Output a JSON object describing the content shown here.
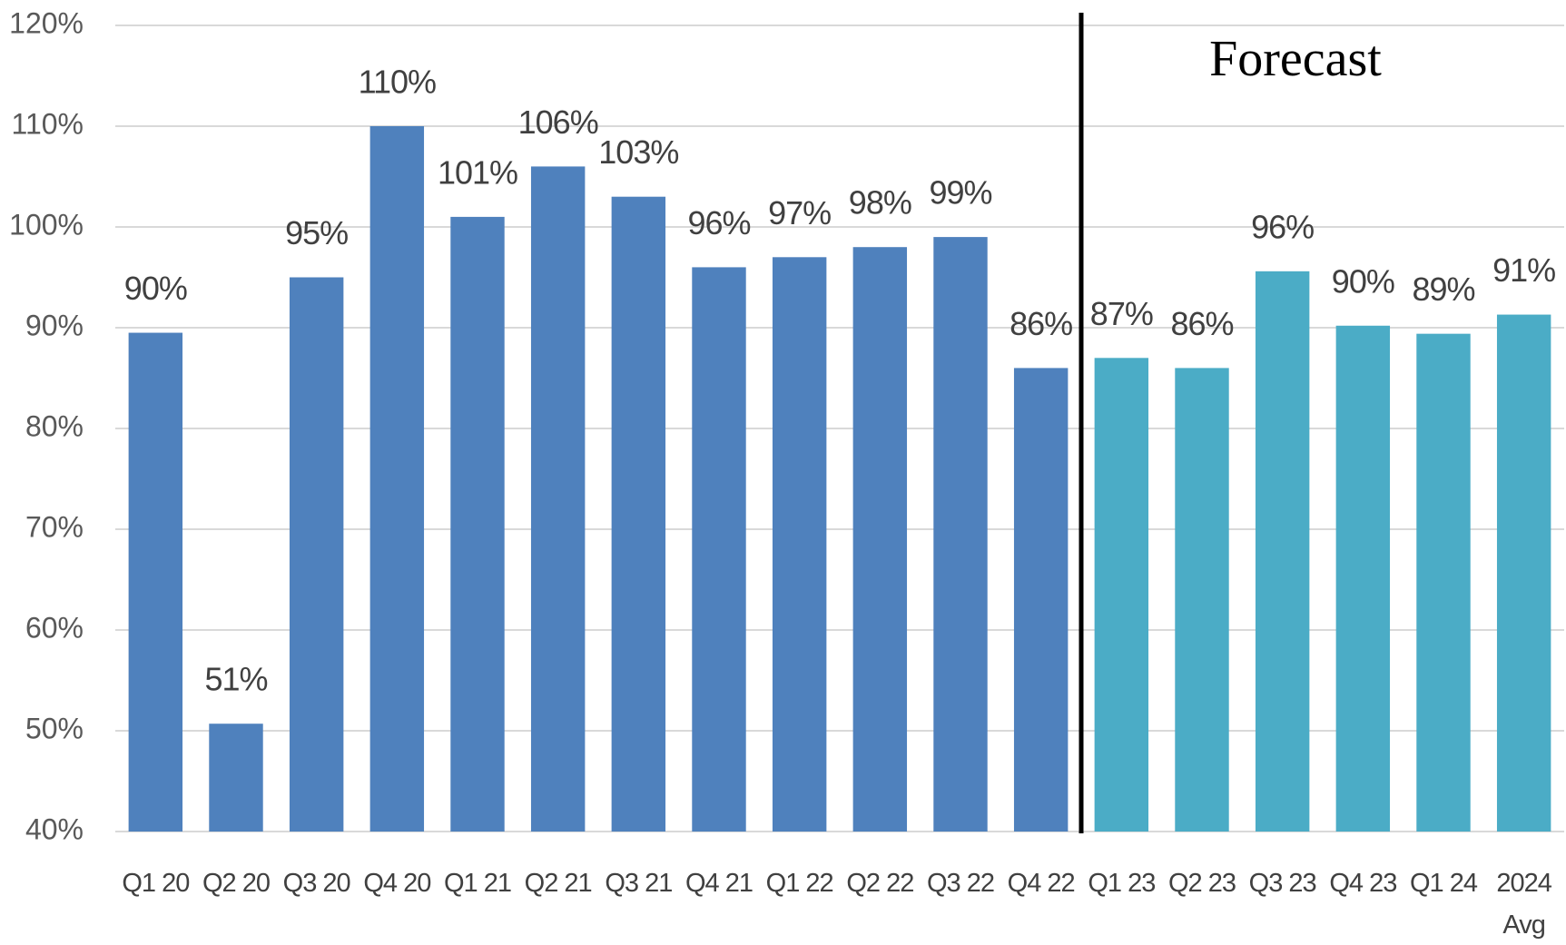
{
  "chart_data": {
    "type": "bar",
    "categories": [
      "Q1 20",
      "Q2 20",
      "Q3 20",
      "Q4 20",
      "Q1 21",
      "Q2 21",
      "Q3 21",
      "Q4 21",
      "Q1 22",
      "Q2 22",
      "Q3 22",
      "Q4 22",
      "Q1 23",
      "Q2 23",
      "Q3 23",
      "Q4 23",
      "Q1 24",
      "2024 Avg"
    ],
    "values": [
      89.5,
      50.7,
      95,
      110,
      101,
      106,
      103,
      96,
      97,
      98,
      99,
      86,
      87,
      86,
      95.6,
      90.2,
      89.4,
      91.3
    ],
    "value_labels": [
      "90%",
      "51%",
      "95%",
      "110%",
      "101%",
      "106%",
      "103%",
      "96%",
      "97%",
      "98%",
      "99%",
      "86%",
      "87%",
      "86%",
      "96%",
      "90%",
      "89%",
      "91%"
    ],
    "colors": [
      "#4f81bd",
      "#4f81bd",
      "#4f81bd",
      "#4f81bd",
      "#4f81bd",
      "#4f81bd",
      "#4f81bd",
      "#4f81bd",
      "#4f81bd",
      "#4f81bd",
      "#4f81bd",
      "#4f81bd",
      "#4bacc6",
      "#4bacc6",
      "#4bacc6",
      "#4bacc6",
      "#4bacc6",
      "#4bacc6"
    ],
    "ylim": [
      40,
      120
    ],
    "yticks": [
      {
        "value": 40,
        "label": "40%"
      },
      {
        "value": 50,
        "label": "50%"
      },
      {
        "value": 60,
        "label": "60%"
      },
      {
        "value": 70,
        "label": "70%"
      },
      {
        "value": 80,
        "label": "80%"
      },
      {
        "value": 90,
        "label": "90%"
      },
      {
        "value": 100,
        "label": "100%"
      },
      {
        "value": 110,
        "label": "110%"
      },
      {
        "value": 120,
        "label": "120%"
      }
    ],
    "grid": true,
    "annotation": {
      "text": "Forecast",
      "after": "Q4 22"
    }
  }
}
